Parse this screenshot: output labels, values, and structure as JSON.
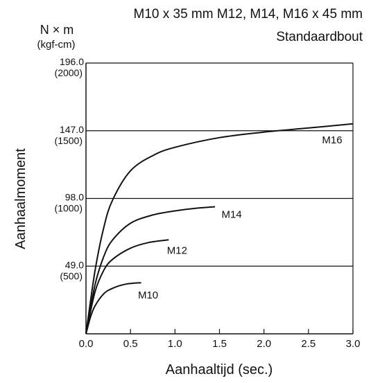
{
  "chart_data": {
    "type": "line",
    "title": "M10 x 35 mm M12, M14, M16 x 45 mm",
    "subtitle": "Standaardbout",
    "xlabel": "Aanhaaltijd (sec.)",
    "ylabel": "Aanhaalmoment",
    "y_unit": "N × m",
    "y_unit_secondary": "(kgf-cm)",
    "xlim": [
      0,
      3.0
    ],
    "ylim": [
      0,
      196
    ],
    "x_ticks": [
      "0.0",
      "0.5",
      "1.0",
      "1.5",
      "2.0",
      "2.5",
      "3.0"
    ],
    "x_tick_values": [
      0,
      0.5,
      1.0,
      1.5,
      2.0,
      2.5,
      3.0
    ],
    "y_ticks": [
      {
        "value": 49,
        "label": "49.0",
        "sublabel": "(500)"
      },
      {
        "value": 98,
        "label": "98.0",
        "sublabel": "(1000)"
      },
      {
        "value": 147,
        "label": "147.0",
        "sublabel": "(1500)"
      },
      {
        "value": 196,
        "label": "196.0",
        "sublabel": "(2000)"
      }
    ],
    "grid": "horizontal",
    "series": [
      {
        "name": "M16",
        "x": [
          0,
          0.1,
          0.2,
          0.3,
          0.5,
          0.75,
          1.0,
          1.5,
          2.0,
          2.5,
          3.0
        ],
        "y": [
          0,
          45,
          77,
          97,
          118,
          129,
          135,
          142,
          146,
          149,
          152
        ]
      },
      {
        "name": "M14",
        "x": [
          0,
          0.1,
          0.2,
          0.3,
          0.5,
          0.75,
          1.0,
          1.25,
          1.45
        ],
        "y": [
          0,
          35,
          56,
          68,
          80,
          86,
          89,
          91,
          92
        ]
      },
      {
        "name": "M12",
        "x": [
          0,
          0.1,
          0.2,
          0.3,
          0.5,
          0.7,
          0.93
        ],
        "y": [
          0,
          30,
          46,
          54,
          62,
          66,
          68
        ]
      },
      {
        "name": "M10",
        "x": [
          0,
          0.05,
          0.1,
          0.2,
          0.3,
          0.45,
          0.62
        ],
        "y": [
          0,
          12,
          20,
          29,
          33,
          36,
          37
        ]
      }
    ]
  }
}
